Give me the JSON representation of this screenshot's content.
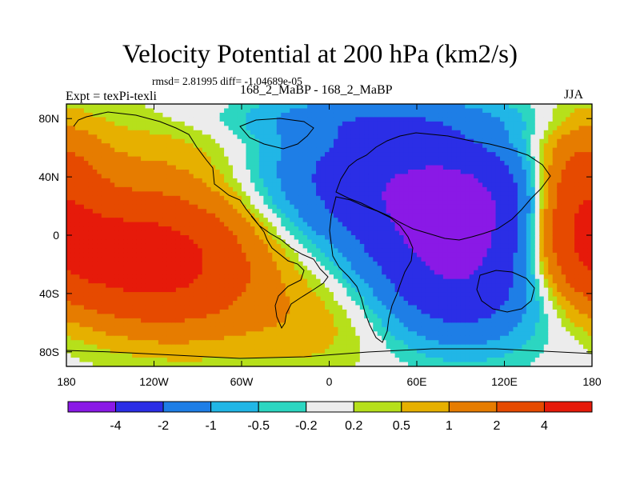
{
  "chart_data": {
    "type": "heatmap",
    "title": "Velocity Potential at 200 hPa (km2/s)",
    "stats_text": "rmsd= 2.81995 diff= -1.04689e-05",
    "left_label": "Expt = texPi-texli",
    "center_label": "168_2_MaBP - 168_2_MaBP",
    "right_label": "JJA",
    "x_range": [
      -180,
      180
    ],
    "y_range": [
      -90,
      90
    ],
    "x_ticks": [
      {
        "value": -180,
        "label": "180"
      },
      {
        "value": -120,
        "label": "120W"
      },
      {
        "value": -60,
        "label": "60W"
      },
      {
        "value": 0,
        "label": "0"
      },
      {
        "value": 60,
        "label": "60E"
      },
      {
        "value": 120,
        "label": "120E"
      },
      {
        "value": 180,
        "label": "180"
      }
    ],
    "y_ticks": [
      {
        "value": 80,
        "label": "80N"
      },
      {
        "value": 40,
        "label": "40N"
      },
      {
        "value": 0,
        "label": "0"
      },
      {
        "value": -40,
        "label": "40S"
      },
      {
        "value": -80,
        "label": "80S"
      }
    ],
    "colorbar": {
      "levels": [
        "-4",
        "-2",
        "-1",
        "-0.5",
        "-0.2",
        "0.2",
        "0.5",
        "1",
        "2",
        "4"
      ],
      "colors": [
        "#8a19e6",
        "#2b2ee6",
        "#1e7ee6",
        "#21b6e6",
        "#2cd6c1",
        "#ececec",
        "#b6e01b",
        "#e6b000",
        "#e67c00",
        "#e64a00",
        "#e61a0a"
      ]
    },
    "field_centers": [
      {
        "lon": -145,
        "lat": -12,
        "value": 3.6,
        "sx": 48,
        "sy": 26
      },
      {
        "lon": -105,
        "lat": -25,
        "value": 2.6,
        "sx": 45,
        "sy": 32
      },
      {
        "lon": -120,
        "lat": 50,
        "value": 0.7,
        "sx": 55,
        "sy": 28
      },
      {
        "lon": 172,
        "lat": 22,
        "value": 3.0,
        "sx": 22,
        "sy": 35
      },
      {
        "lon": 90,
        "lat": 18,
        "value": -4.2,
        "sx": 38,
        "sy": 30
      },
      {
        "lon": 90,
        "lat": -35,
        "value": -2.8,
        "sx": 40,
        "sy": 28
      },
      {
        "lon": 40,
        "lat": 35,
        "value": -2.0,
        "sx": 45,
        "sy": 36
      },
      {
        "lon": -10,
        "lat": 42,
        "value": -1.0,
        "sx": 40,
        "sy": 28
      },
      {
        "lon": 30,
        "lat": 80,
        "value": -0.8,
        "sx": 80,
        "sy": 10
      },
      {
        "lon": -10,
        "lat": -60,
        "value": 0.7,
        "sx": 40,
        "sy": 25
      }
    ]
  }
}
